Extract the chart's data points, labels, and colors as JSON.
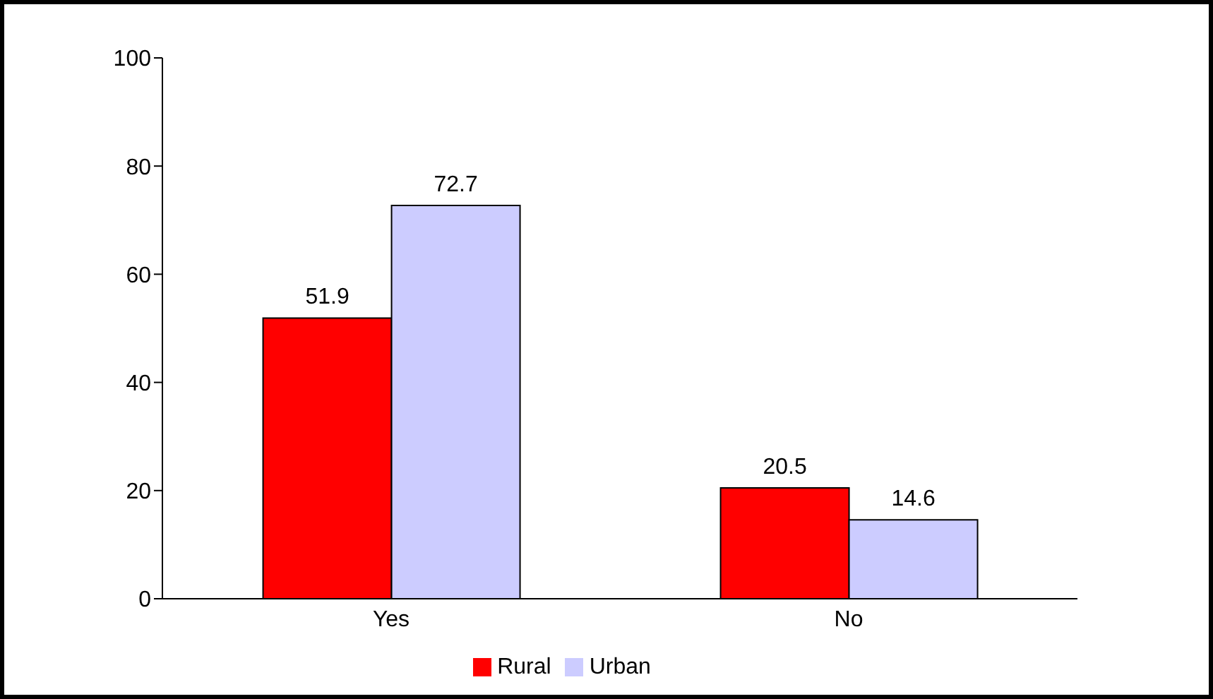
{
  "chart_data": {
    "type": "bar",
    "categories": [
      "Yes",
      "No"
    ],
    "series": [
      {
        "name": "Rural",
        "color": "#ff0000",
        "values": [
          51.9,
          20.5
        ]
      },
      {
        "name": "Urban",
        "color": "#ccccff",
        "values": [
          72.7,
          14.6
        ]
      }
    ],
    "ylim": [
      0,
      100
    ],
    "yticks": [
      0,
      20,
      40,
      60,
      80,
      100
    ],
    "data_labels": true,
    "legend": "bottom",
    "grid": false
  }
}
